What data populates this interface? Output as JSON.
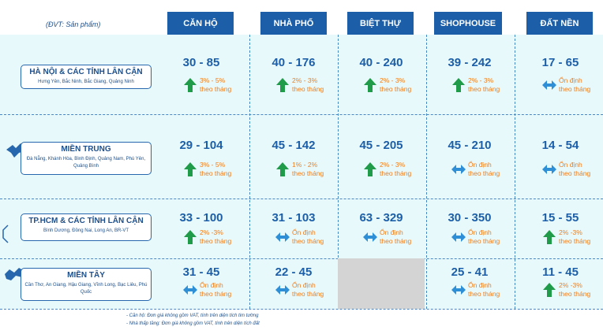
{
  "unit_label": "(ĐVT: Sản phẩm)",
  "columns": [
    "CĂN HỘ",
    "NHÀ PHỐ",
    "BIỆT THỰ",
    "SHOPHOUSE",
    "ĐẤT NỀN"
  ],
  "regions": [
    {
      "name": "HÀ NỘI & CÁC TỈNH LÂN CẬN",
      "sub": "Hưng Yên, Bắc Ninh, Bắc Giang, Quảng Ninh",
      "cells": [
        {
          "value": "30 - 85",
          "trend": "up",
          "line1": "3% - 5%",
          "line2": "theo tháng"
        },
        {
          "value": "40 - 176",
          "trend": "up",
          "line1": "2% - 3%",
          "line2": "theo tháng"
        },
        {
          "value": "40 - 240",
          "trend": "up",
          "line1": "2% - 3%",
          "line2": "theo tháng"
        },
        {
          "value": "39 - 242",
          "trend": "up",
          "line1": "2% - 3%",
          "line2": "theo tháng"
        },
        {
          "value": "17 - 65",
          "trend": "stable",
          "line1": "Ổn định",
          "line2": "theo tháng"
        }
      ]
    },
    {
      "name": "MIỀN TRUNG",
      "sub": "Đà Nẵng, Khánh Hòa, Bình Định, Quảng Nam, Phú Yên, Quảng Bình",
      "cells": [
        {
          "value": "29 - 104",
          "trend": "up",
          "line1": "3% - 5%",
          "line2": "theo tháng"
        },
        {
          "value": "45 - 142",
          "trend": "up",
          "line1": "1% - 2%",
          "line2": "theo tháng"
        },
        {
          "value": "45 - 205",
          "trend": "up",
          "line1": "2% - 3%",
          "line2": "theo tháng"
        },
        {
          "value": "45 - 210",
          "trend": "stable",
          "line1": "Ổn định",
          "line2": "theo tháng"
        },
        {
          "value": "14 - 54",
          "trend": "stable",
          "line1": "Ổn định",
          "line2": "theo tháng"
        }
      ]
    },
    {
      "name": "TP.HCM & CÁC TỈNH LÂN CẬN",
      "sub": "Bình Dương, Đồng Nai, Long An, BR-VT",
      "cells": [
        {
          "value": "33 - 100",
          "trend": "up",
          "line1": "2% -3%",
          "line2": "theo tháng"
        },
        {
          "value": "31 - 103",
          "trend": "stable",
          "line1": "Ổn định",
          "line2": "theo tháng"
        },
        {
          "value": "63 - 329",
          "trend": "stable",
          "line1": "Ổn định",
          "line2": "theo tháng"
        },
        {
          "value": "30 - 350",
          "trend": "stable",
          "line1": "Ổn định",
          "line2": "theo tháng"
        },
        {
          "value": "15 - 55",
          "trend": "up",
          "line1": "2% -3%",
          "line2": "theo tháng"
        }
      ]
    },
    {
      "name": "MIỀN TÂY",
      "sub": "Cần Thơ, An Giang, Hậu Giang, Vĩnh Long, Bạc Liêu, Phú Quốc",
      "cells": [
        {
          "value": "31 - 45",
          "trend": "stable",
          "line1": "Ổn định",
          "line2": "theo tháng"
        },
        {
          "value": "22 - 45",
          "trend": "stable",
          "line1": "Ổn định",
          "line2": "theo tháng"
        },
        null,
        {
          "value": "25 - 41",
          "trend": "stable",
          "line1": "Ổn định",
          "line2": "theo tháng"
        },
        {
          "value": "11 - 45",
          "trend": "up",
          "line1": "2% -3%",
          "line2": "theo tháng"
        }
      ]
    }
  ],
  "footnotes": [
    "- Căn hộ: Đơn giá không gồm VAT, tính trên diện tích tim tường",
    "- Nhà thấp tầng: Đơn giá không gồm VAT, tính trên diện tích đất"
  ],
  "colors": {
    "header": "#1c5fa8",
    "up_arrow": "#1f9b4a",
    "stable_arrow": "#2f8fd6",
    "note": "#f07d1a"
  }
}
